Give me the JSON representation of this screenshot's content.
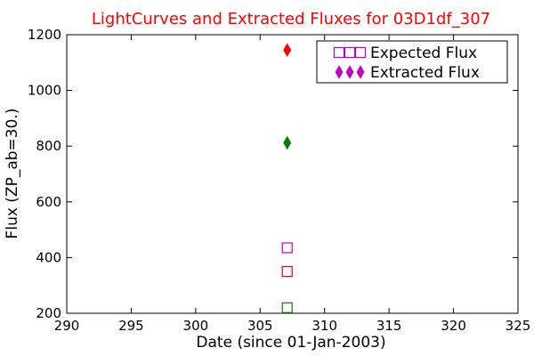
{
  "chart_data": {
    "type": "scatter",
    "title": "LightCurves and Extracted Fluxes for 03D1df_307",
    "title_color": "#ff0000",
    "xlabel": "Date (since 01-Jan-2003)",
    "ylabel": "Flux (ZP_ab=30.)",
    "xlim": [
      290,
      325
    ],
    "ylim": [
      200,
      1200
    ],
    "xticks": [
      290,
      295,
      300,
      305,
      310,
      315,
      320,
      325
    ],
    "yticks": [
      200,
      400,
      600,
      800,
      1000,
      1200
    ],
    "grid": false,
    "legend_position": "top-right",
    "legend": [
      {
        "label": "Expected Flux",
        "marker": "square-open",
        "color": "#bf00bf"
      },
      {
        "label": "Extracted Flux",
        "marker": "diamond-filled",
        "color": "#bf00bf"
      }
    ],
    "series": [
      {
        "marker": "square-open",
        "points": [
          {
            "x": 307.1,
            "y": 435,
            "color": "#bf00bf"
          },
          {
            "x": 307.1,
            "y": 350,
            "color": "#ff0000"
          },
          {
            "x": 307.1,
            "y": 220,
            "color": "#008000"
          }
        ]
      },
      {
        "marker": "diamond-filled",
        "points": [
          {
            "x": 307.1,
            "y": 1145,
            "color": "#ff0000"
          },
          {
            "x": 307.1,
            "y": 812,
            "color": "#008000"
          }
        ]
      }
    ]
  }
}
